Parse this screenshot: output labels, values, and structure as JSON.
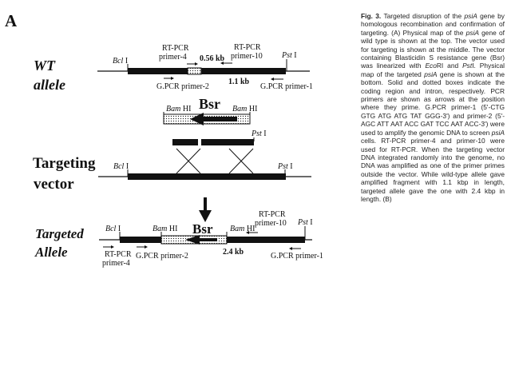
{
  "panel_letter": "A",
  "rows": {
    "wt": {
      "line1": "WT",
      "line2": "allele"
    },
    "vector": {
      "line1": "Targeting",
      "line2": "vector"
    },
    "targeted": {
      "line1": "Targeted",
      "line2": "Allele"
    }
  },
  "sites": {
    "bcl": "Bcl",
    "pst": "Pst",
    "bam": "Bam",
    "roman": "I",
    "bam_roman": "HI"
  },
  "labels": {
    "rt_pcr": "RT-PCR",
    "primer_4": "primer-4",
    "primer_10": "primer-10",
    "gpcr_primer_2": "G.PCR primer-2",
    "gpcr_primer_1": "G.PCR primer-1",
    "size_056": "0.56 kb",
    "size_11": "1.1 kb",
    "size_24": "2.4 kb",
    "bsr": "Bsr"
  },
  "caption": {
    "title": "Fig. 3.",
    "text_1": " Targeted disruption of the ",
    "gene_1": "psiA",
    "text_2": " gene by homologous recombination and confirmation of targeting. (A) Physical map of the ",
    "gene_2": "psiA",
    "text_3": " gene of wild type is shown at the top. The vector used for targeting is shown at the middle. The vector containing Blasticidin S resistance gene (Bsr) was linearized with ",
    "enzyme_1": "Eco",
    "text_4": "RI and ",
    "enzyme_2": "Pst",
    "text_5": "I. Physical map of the targeted ",
    "gene_3": "psiA",
    "text_6": " gene is shown at the bottom. Solid and dotted boxes indicate the coding region and intron, respectively. PCR primers are shown as arrows at the position where they prime. G.PCR primer-1 (5'-CTG GTG ATG ATG TAT GGG-3') and primer-2 (5'- AGC ATT AAT ACC GAT TCC AAT ACC-3') were used to amplify the genomic DNA to screen ",
    "gene_4": "psiA",
    "text_7": " cells. RT-PCR primer-4 and primer-10 were used for RT-PCR. When the targeting vector DNA integrated randomly into the genome, no DNA was amplified as one of the primer primes outside the vector. While wild-type allele gave amplified fragment with 1.1 kbp in length, targeted allele gave the one with 2.4 kbp in length. (B)"
  }
}
